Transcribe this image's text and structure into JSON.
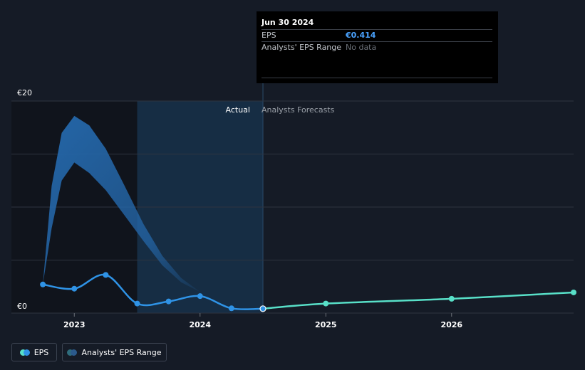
{
  "chart_data": {
    "type": "line",
    "y_axis_labels": {
      "top": "€20",
      "bottom": "€0"
    },
    "ylim": [
      0,
      20
    ],
    "x_ticks": [
      {
        "label": "2023",
        "t": 2023.0
      },
      {
        "label": "2024",
        "t": 2024.0
      },
      {
        "label": "2025",
        "t": 2025.0
      },
      {
        "label": "2026",
        "t": 2026.0
      }
    ],
    "xlim": [
      2022.5,
      2026.97
    ],
    "divider_t": 2024.5,
    "region_labels": {
      "actual": "Actual",
      "forecast": "Analysts Forecasts"
    },
    "eps_actual": [
      {
        "t": 2022.75,
        "v": 2.7
      },
      {
        "t": 2023.0,
        "v": 2.3
      },
      {
        "t": 2023.25,
        "v": 3.6
      },
      {
        "t": 2023.5,
        "v": 0.9
      },
      {
        "t": 2023.75,
        "v": 1.1
      },
      {
        "t": 2024.0,
        "v": 1.6
      },
      {
        "t": 2024.25,
        "v": 0.45
      },
      {
        "t": 2024.5,
        "v": 0.414
      }
    ],
    "eps_forecast": [
      {
        "t": 2024.5,
        "v": 0.414
      },
      {
        "t": 2025.0,
        "v": 0.9
      },
      {
        "t": 2026.0,
        "v": 1.35
      },
      {
        "t": 2026.97,
        "v": 1.95
      }
    ],
    "range_band": {
      "upper": [
        {
          "t": 2022.75,
          "v": 2.7
        },
        {
          "t": 2022.82,
          "v": 12.0
        },
        {
          "t": 2022.9,
          "v": 17.0
        },
        {
          "t": 2023.0,
          "v": 18.6
        },
        {
          "t": 2023.12,
          "v": 17.7
        },
        {
          "t": 2023.25,
          "v": 15.5
        },
        {
          "t": 2023.4,
          "v": 12.0
        },
        {
          "t": 2023.55,
          "v": 8.4
        },
        {
          "t": 2023.7,
          "v": 5.4
        },
        {
          "t": 2023.85,
          "v": 3.3
        },
        {
          "t": 2024.0,
          "v": 2.0
        }
      ],
      "lower": [
        {
          "t": 2024.0,
          "v": 2.0
        },
        {
          "t": 2023.85,
          "v": 2.9
        },
        {
          "t": 2023.7,
          "v": 4.5
        },
        {
          "t": 2023.55,
          "v": 6.8
        },
        {
          "t": 2023.4,
          "v": 9.2
        },
        {
          "t": 2023.25,
          "v": 11.6
        },
        {
          "t": 2023.12,
          "v": 13.2
        },
        {
          "t": 2023.0,
          "v": 14.2
        },
        {
          "t": 2022.9,
          "v": 12.5
        },
        {
          "t": 2022.82,
          "v": 8.0
        },
        {
          "t": 2022.75,
          "v": 2.7
        }
      ]
    },
    "legend": [
      {
        "label": "EPS"
      },
      {
        "label": "Analysts' EPS Range"
      }
    ]
  },
  "tooltip": {
    "date": "Jun 30 2024",
    "eps_label": "EPS",
    "eps_value": "€0.414",
    "range_label": "Analysts' EPS Range",
    "range_value": "No data"
  },
  "colors": {
    "eps_actual": "#2f93e6",
    "eps_forecast": "#58e0c8",
    "band": "#2466a8",
    "range_dot": "#2e6c7c",
    "accent_value": "#4aa3ff"
  }
}
